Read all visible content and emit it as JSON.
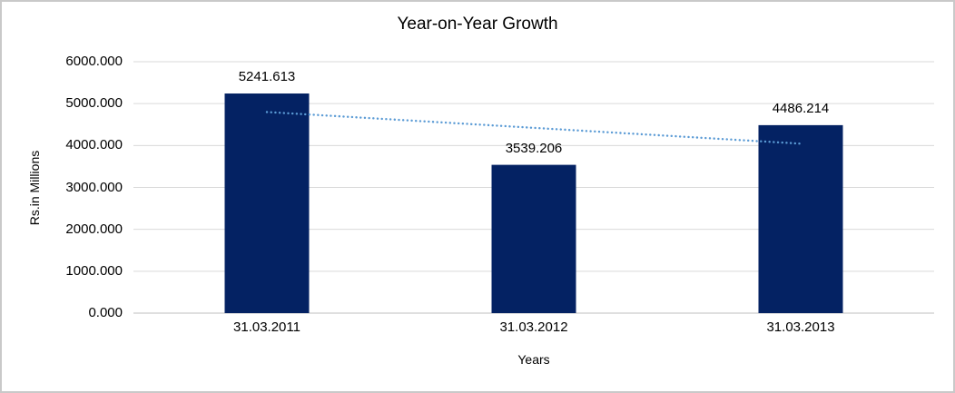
{
  "chart_data": {
    "type": "bar",
    "title": "Year-on-Year Growth",
    "xlabel": "Years",
    "ylabel": "Rs.in Millions",
    "categories": [
      "31.03.2011",
      "31.03.2012",
      "31.03.2013"
    ],
    "values": [
      5241.613,
      3539.206,
      4486.214
    ],
    "data_labels": [
      "5241.613",
      "3539.206",
      "4486.214"
    ],
    "ylim": [
      0,
      6000
    ],
    "ytick_step": 1000,
    "ytick_labels": [
      "0.000",
      "1000.000",
      "2000.000",
      "3000.000",
      "4000.000",
      "5000.000",
      "6000.000"
    ],
    "grid": true,
    "legend": "none",
    "trendline": {
      "type": "linear",
      "style": "dotted"
    },
    "colors": {
      "bar": "#042263",
      "trendline": "#5B9BD5",
      "gridline": "#D9D9D9",
      "axis_line": "#BFBFBF",
      "text": "#000000",
      "frame_border": "#C9C9C9"
    }
  }
}
